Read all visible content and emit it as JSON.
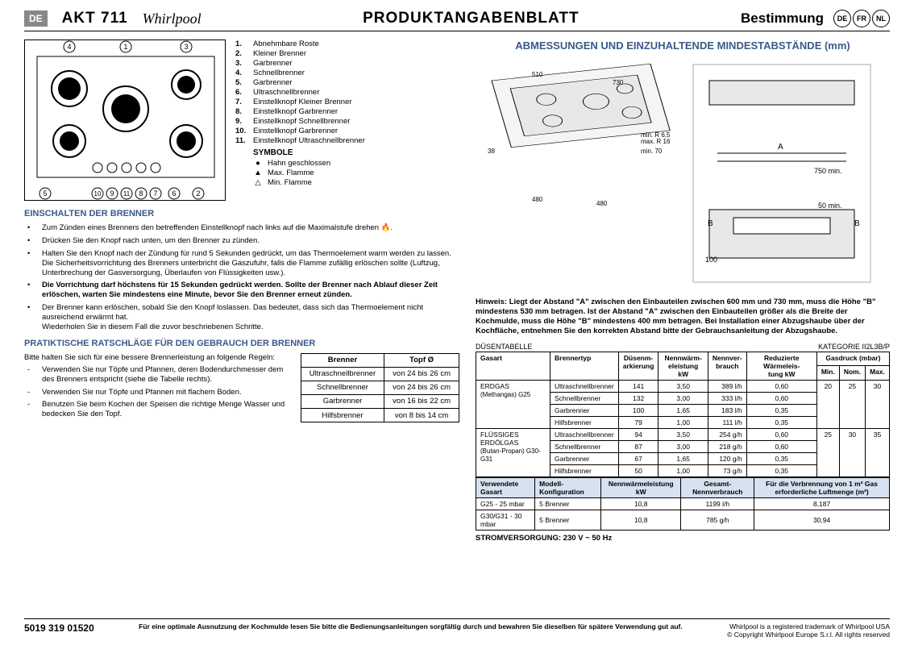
{
  "header": {
    "lang_badge": "DE",
    "model": "AKT 711",
    "brand": "Whirlpool",
    "title": "PRODUKTANGABENBLATT",
    "destination": "Bestimmung",
    "langs": [
      "DE",
      "FR",
      "NL"
    ]
  },
  "parts": {
    "items": [
      {
        "n": "1.",
        "t": "Abnehmbare Roste"
      },
      {
        "n": "2.",
        "t": "Kleiner Brenner"
      },
      {
        "n": "3.",
        "t": "Garbrenner"
      },
      {
        "n": "4.",
        "t": "Schnellbrenner"
      },
      {
        "n": "5.",
        "t": "Garbrenner"
      },
      {
        "n": "6.",
        "t": "Ultraschnellbrenner"
      },
      {
        "n": "7.",
        "t": "Einstellknopf Kleiner Brenner"
      },
      {
        "n": "8.",
        "t": "Einstellknopf Garbrenner"
      },
      {
        "n": "9.",
        "t": "Einstellknopf Schnellbrenner"
      },
      {
        "n": "10.",
        "t": "Einstellknopf Garbrenner"
      },
      {
        "n": "11.",
        "t": "Einstellknopf Ultraschnellbrenner"
      }
    ],
    "symbole_title": "SYMBOLE",
    "symbols": [
      {
        "icon": "●",
        "t": "Hahn geschlossen"
      },
      {
        "icon": "▲",
        "t": "Max. Flamme"
      },
      {
        "icon": "△",
        "t": "Min. Flamme"
      }
    ]
  },
  "einschalten": {
    "title": "EINSCHALTEN DER BRENNER",
    "items": [
      "Zum Zünden eines Brenners den betreffenden Einstellknopf nach links auf die Maximalstufe drehen  🔥.",
      "Drücken Sie den Knopf nach unten, um den Brenner zu zünden.",
      "Halten Sie den Knopf nach der Zündung für rund 5 Sekunden gedrückt, um das Thermoelement warm werden zu lassen. Die Sicherheitsvorrichtung des Brenners unterbricht die Gaszufuhr, falls die Flamme zufällig erlöschen sollte (Luftzug, Unterbrechung der Gasversorgung, Überlaufen von Flüssigkeiten usw.).",
      "Die Vorrichtung darf höchstens für 15 Sekunden gedrückt werden. Sollte der Brenner nach Ablauf dieser Zeit erlöschen, warten Sie mindestens eine Minute, bevor Sie den Brenner erneut zünden.",
      "Der Brenner kann erlöschen, sobald Sie den Knopf loslassen. Das bedeutet, dass sich das Thermoelement nicht ausreichend erwärmt hat.\nWiederholen Sie in diesem Fall die zuvor beschriebenen Schritte."
    ],
    "bold_index": 3
  },
  "praktisch": {
    "title": "PRATIKTISCHE RATSCHLÄGE FÜR DEN GEBRAUCH DER BRENNER",
    "intro": "Bitte halten Sie sich für eine bessere Brennerleistung an folgende Regeln:",
    "items": [
      "Verwenden Sie nur Töpfe und Pfannen, deren Bodendurchmesser dem des Brenners entspricht (siehe die Tabelle rechts).",
      "Verwenden Sie nur Töpfe und Pfannen mit flachem Boden.",
      "Benutzen Sie beim Kochen der Speisen die richtige Menge Wasser und bedecken Sie den Topf."
    ],
    "table": {
      "headers": [
        "Brenner",
        "Topf Ø"
      ],
      "rows": [
        [
          "Ultraschnellbrenner",
          "von 24 bis 26 cm"
        ],
        [
          "Schnellbrenner",
          "von 24 bis 26 cm"
        ],
        [
          "Garbrenner",
          "von 16 bis 22 cm"
        ],
        [
          "Hilfsbrenner",
          "von 8 bis 14 cm"
        ]
      ]
    }
  },
  "dimensions_title": "ABMESSUNGEN UND EINZUHALTENDE MINDESTABSTÄNDE (mm)",
  "hinweis": {
    "label": "Hinweis:",
    "text": "Liegt der Abstand \"A\" zwischen den Einbauteilen zwischen 600 mm und 730 mm, muss die Höhe \"B\" mindestens 530 mm betragen. Ist der Abstand \"A\" zwischen den Einbauteilen größer als die Breite der Kochmulde, muss die Höhe \"B\" mindestens 400 mm betragen. Bei Installation einer Abzugshaube über der Kochfläche, entnehmen Sie den korrekten Abstand bitte der Gebrauchsanleitung der Abzugshaube."
  },
  "nozzle": {
    "header_left": "DÜSENTABELLE",
    "header_right": "KATEGORIE II2L3B/P",
    "cols": [
      "Gasart",
      "Brennertyp",
      "Düsenm-arkierung",
      "Nennwärm-eleistung kW",
      "Nennver-brauch",
      "Reduzierte Wärmeleis-tung kW",
      "Gasdruck (mbar)"
    ],
    "gasdruck_sub": [
      "Min.",
      "Nom.",
      "Max."
    ],
    "groups": [
      {
        "gas": "ERDGAS",
        "gas_sub": "(Methangas)          G25",
        "rows": [
          [
            "Ultraschnellbrenner",
            "141",
            "3,50",
            "389 l/h",
            "0,60"
          ],
          [
            "Schnellbrenner",
            "132",
            "3,00",
            "333 l/h",
            "0,60"
          ],
          [
            "Garbrenner",
            "100",
            "1,65",
            "183 l/h",
            "0,35"
          ],
          [
            "Hilfsbrenner",
            "79",
            "1,00",
            "111 l/h",
            "0,35"
          ]
        ],
        "pressure": [
          "20",
          "25",
          "30"
        ]
      },
      {
        "gas": "FLÜSSIGES ERDÖLGAS",
        "gas_sub": "(Butan-Propan)  G30-G31",
        "rows": [
          [
            "Ultraschnellbrenner",
            "94",
            "3,50",
            "254 g/h",
            "0,60"
          ],
          [
            "Schnellbrenner",
            "87",
            "3,00",
            "218 g/h",
            "0,60"
          ],
          [
            "Garbrenner",
            "67",
            "1,65",
            "120 g/h",
            "0,35"
          ],
          [
            "Hilfsbrenner",
            "50",
            "1,00",
            "73 g/h",
            "0,35"
          ]
        ],
        "pressure": [
          "25",
          "30",
          "35"
        ]
      }
    ]
  },
  "config": {
    "headers": [
      "Verwendete Gasart",
      "Modell-Konfiguration",
      "Nennwärmeleistung kW",
      "Gesamt-Nennverbrauch",
      "Für die Verbrennung von 1 m³ Gas erforderliche Luftmenge (m³)"
    ],
    "rows": [
      [
        "G25 - 25 mbar",
        "5 Brenner",
        "10,8",
        "1199 l/h",
        "8,187"
      ],
      [
        "G30/G31 - 30 mbar",
        "5 Brenner",
        "10,8",
        "785 g/h",
        "30,94"
      ]
    ]
  },
  "power": "STROMVERSORGUNG: 230 V ~ 50 Hz",
  "footer": {
    "left": "5019 319 01520",
    "center": "Für eine optimale Ausnutzung der Kochmulde lesen Sie bitte die Bedienungsanleitungen sorgfältig durch und bewahren Sie dieselben für spätere Verwendung gut auf.",
    "right1": "Whirlpool is a registered trademark of Whirlpool USA",
    "right2": "© Copyright Whirlpool Europe S.r.l. All rights reserved"
  },
  "diagram_labels": {
    "hob_dims": [
      "510",
      "730",
      "38",
      "480",
      "480",
      "min. 70",
      "min. R 6,5",
      "max. R 16"
    ],
    "install": [
      "A",
      "750 min.",
      "50 min.",
      "B",
      "B",
      "100"
    ]
  }
}
